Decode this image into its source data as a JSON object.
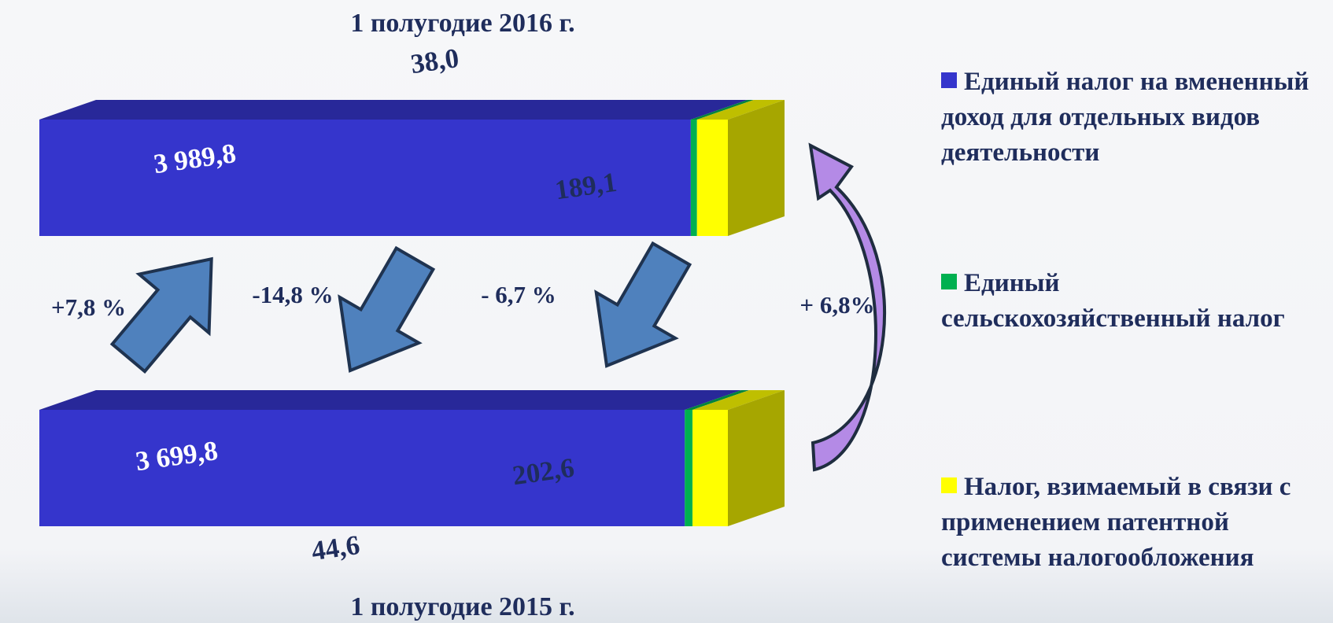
{
  "chart_data": {
    "type": "stacked-bar-3d",
    "categories": [
      "1 полугодие 2016 г.",
      "1 полугодие 2015 г."
    ],
    "series": [
      {
        "name": "Единый налог на вмененный доход для отдельных видов деятельности",
        "color": "#3535cc",
        "values": [
          3989.8,
          3699.8
        ],
        "value_labels": [
          "3 989,8",
          "3 699,8"
        ]
      },
      {
        "name": "Единый сельскохозяйственный налог",
        "color": "#00b050",
        "values": [
          38.0,
          44.6
        ],
        "value_labels": [
          "38,0",
          "44,6"
        ]
      },
      {
        "name": "Налог, взимаемый в связи с применением патентной системы налогообложения",
        "color": "#ffff00",
        "values": [
          189.1,
          202.6
        ],
        "value_labels": [
          "189,1",
          "202,6"
        ]
      }
    ],
    "annotations": [
      "+7,8 %",
      "-14,8 %",
      "- 6,7 %",
      "+ 6,8%"
    ]
  }
}
